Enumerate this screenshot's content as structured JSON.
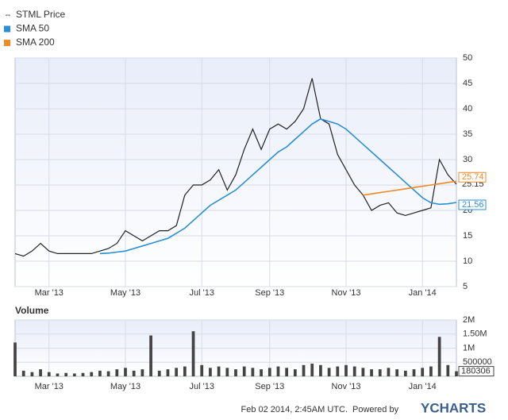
{
  "chart_data": [
    {
      "type": "line",
      "title": null,
      "categories": [
        null,
        null,
        null,
        null,
        "Mar '13",
        null,
        null,
        null,
        null,
        null,
        null,
        null,
        null,
        "May '13",
        null,
        null,
        null,
        null,
        null,
        null,
        null,
        null,
        "Jul '13",
        null,
        null,
        null,
        null,
        null,
        null,
        null,
        "Sep '13",
        null,
        null,
        null,
        null,
        null,
        null,
        null,
        null,
        "Nov '13",
        null,
        null,
        null,
        null,
        null,
        null,
        null,
        null,
        "Jan '14",
        null,
        null,
        null,
        null
      ],
      "series": [
        {
          "name": "STML Price",
          "color": "#222222",
          "values": [
            11.5,
            11,
            12,
            13.5,
            12,
            11.5,
            11.5,
            11.5,
            11.5,
            11.5,
            12,
            12.5,
            13.5,
            16,
            15,
            14,
            15,
            16,
            16,
            17,
            23,
            25,
            25,
            26,
            28,
            24,
            27,
            32,
            36,
            32,
            36,
            37,
            36,
            37.5,
            40,
            46,
            38,
            37,
            31,
            28,
            25,
            23,
            20,
            21,
            21.5,
            19.5,
            19,
            19.5,
            20,
            20.5,
            30,
            27,
            25.15
          ]
        },
        {
          "name": "SMA 50",
          "color": "#2a8fd6",
          "values": [
            null,
            null,
            null,
            null,
            null,
            null,
            null,
            null,
            null,
            null,
            11.5,
            11.6,
            11.8,
            12,
            12.5,
            13,
            13.5,
            14,
            14.5,
            15.5,
            16.5,
            18,
            19.5,
            21,
            22,
            23,
            24,
            25.5,
            27,
            28.5,
            30,
            31.5,
            32.5,
            34,
            35.5,
            37,
            38,
            37.5,
            37,
            36,
            34.5,
            33,
            31.5,
            30,
            28.5,
            27,
            25.5,
            24,
            22.5,
            21.5,
            21.2,
            21.3,
            21.56
          ]
        },
        {
          "name": "SMA 200",
          "color": "#f08a24",
          "values": [
            null,
            null,
            null,
            null,
            null,
            null,
            null,
            null,
            null,
            null,
            null,
            null,
            null,
            null,
            null,
            null,
            null,
            null,
            null,
            null,
            null,
            null,
            null,
            null,
            null,
            null,
            null,
            null,
            null,
            null,
            null,
            null,
            null,
            null,
            null,
            null,
            null,
            null,
            null,
            null,
            null,
            23,
            23.25,
            23.5,
            23.75,
            24,
            24.25,
            24.5,
            24.75,
            25,
            25.25,
            25.5,
            25.74
          ]
        }
      ],
      "ylim": [
        5,
        50
      ],
      "yticks": [
        5,
        10,
        15,
        20,
        25,
        30,
        35,
        40,
        45,
        50
      ],
      "grid": true,
      "legend": "top-left"
    },
    {
      "type": "bar",
      "title": "Volume",
      "categories": [
        null,
        null,
        null,
        null,
        "Mar '13",
        null,
        null,
        null,
        null,
        null,
        null,
        null,
        null,
        "May '13",
        null,
        null,
        null,
        null,
        null,
        null,
        null,
        null,
        "Jul '13",
        null,
        null,
        null,
        null,
        null,
        null,
        null,
        "Sep '13",
        null,
        null,
        null,
        null,
        null,
        null,
        null,
        null,
        "Nov '13",
        null,
        null,
        null,
        null,
        null,
        null,
        null,
        null,
        "Jan '14",
        null,
        null,
        null,
        null
      ],
      "values": [
        1200000,
        200000,
        150000,
        250000,
        150000,
        100000,
        120000,
        100000,
        120000,
        150000,
        200000,
        180000,
        250000,
        300000,
        200000,
        250000,
        1450000,
        200000,
        250000,
        300000,
        350000,
        1600000,
        400000,
        300000,
        350000,
        300000,
        250000,
        350000,
        300000,
        250000,
        300000,
        350000,
        300000,
        250000,
        400000,
        450000,
        400000,
        300000,
        350000,
        400000,
        350000,
        300000,
        250000,
        250000,
        300000,
        250000,
        200000,
        250000,
        300000,
        350000,
        1400000,
        400000,
        180306
      ],
      "color": "#444444",
      "ylim": [
        0,
        2000000
      ],
      "yticks": [
        {
          "value": 500000,
          "label": "500000"
        },
        {
          "value": 1000000,
          "label": "1M"
        },
        {
          "value": 1500000,
          "label": "1.50M"
        },
        {
          "value": 2000000,
          "label": "2M"
        }
      ],
      "grid": true
    }
  ],
  "footer": {
    "timestamp": "Feb 02 2014, 2:45AM UTC.",
    "powered_by": "Powered by",
    "brand": "YCHARTS"
  }
}
